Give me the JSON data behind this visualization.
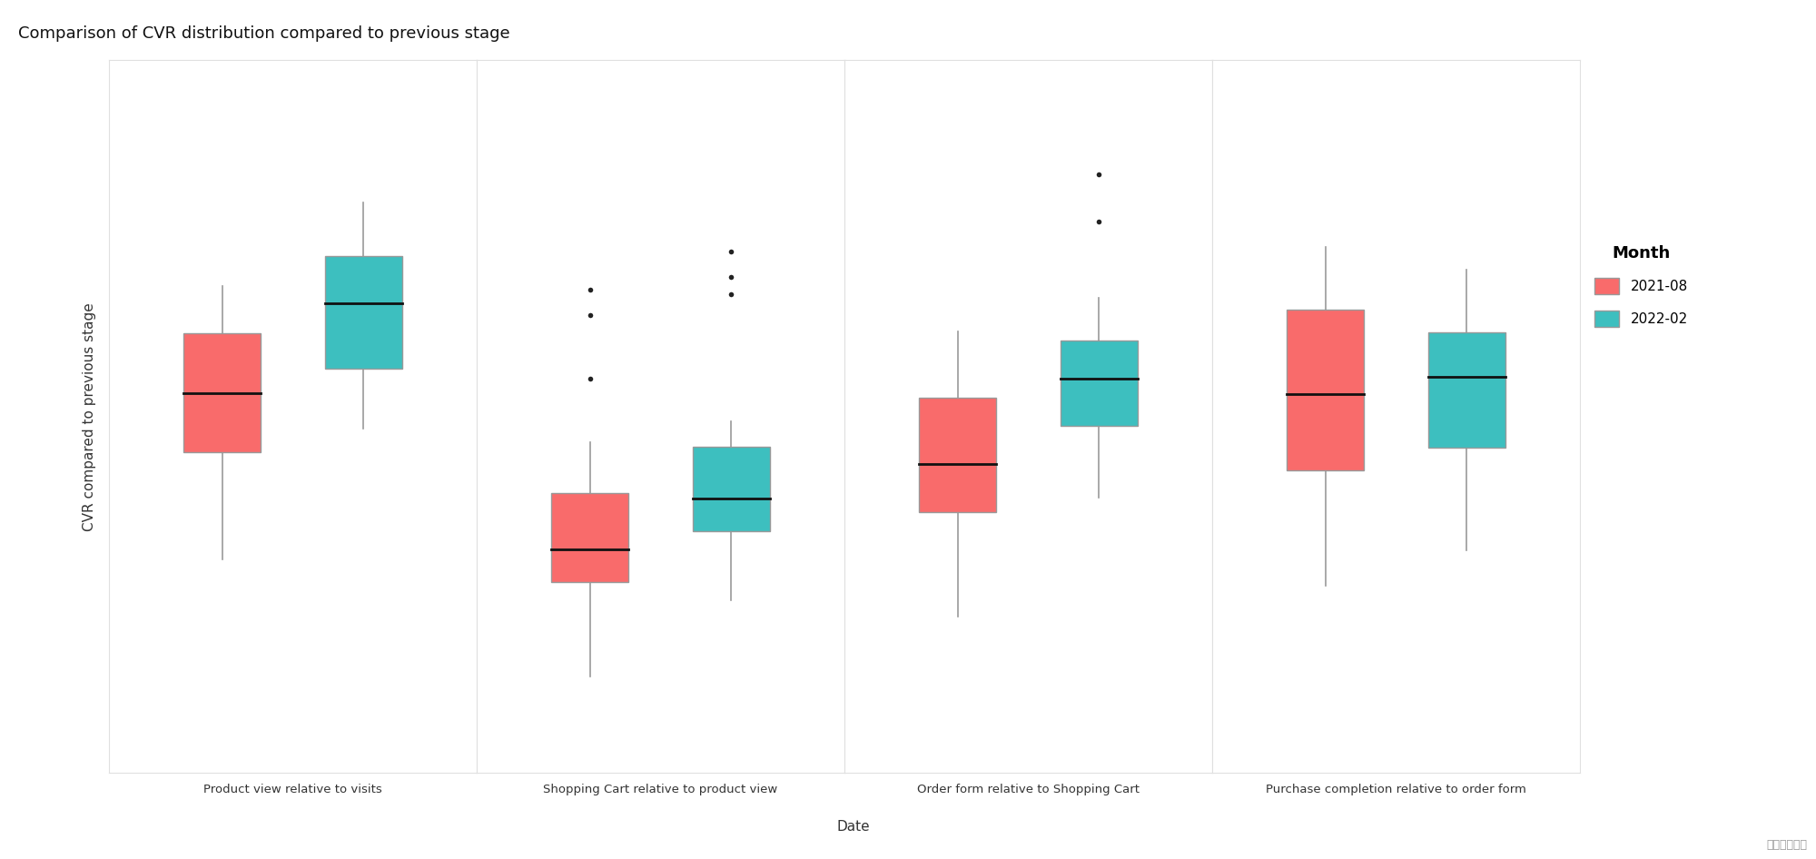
{
  "title": "Comparison of CVR distribution compared to previous stage",
  "xlabel": "Date",
  "ylabel": "CVR compared to previous stage",
  "categories": [
    "Product view relative to visits",
    "Shopping Cart relative to product view",
    "Order form relative to Shopping Cart",
    "Purchase completion relative to order form"
  ],
  "legend_title": "Month",
  "color_2021": "#F96B6B",
  "color_2022": "#3DBFBF",
  "bg_color": "#FFFFFF",
  "grid_color": "#E0E0E0",
  "watermark": "데이타라이즈",
  "boxes": {
    "Product view relative to visits": {
      "2021-08": {
        "q1": 0.62,
        "median": 0.67,
        "q3": 0.72,
        "whisker_low": 0.53,
        "whisker_high": 0.76,
        "fliers": []
      },
      "2022-02": {
        "q1": 0.69,
        "median": 0.745,
        "q3": 0.785,
        "whisker_low": 0.64,
        "whisker_high": 0.83,
        "fliers": []
      }
    },
    "Shopping Cart relative to product view": {
      "2021-08": {
        "q1": 0.055,
        "median": 0.068,
        "q3": 0.09,
        "whisker_low": 0.018,
        "whisker_high": 0.11,
        "fliers": [
          0.17,
          0.16,
          0.135
        ]
      },
      "2022-02": {
        "q1": 0.075,
        "median": 0.088,
        "q3": 0.108,
        "whisker_low": 0.048,
        "whisker_high": 0.118,
        "fliers": [
          0.185,
          0.175,
          0.168
        ]
      }
    },
    "Order form relative to Shopping Cart": {
      "2021-08": {
        "q1": 0.375,
        "median": 0.425,
        "q3": 0.495,
        "whisker_low": 0.265,
        "whisker_high": 0.565,
        "fliers": []
      },
      "2022-02": {
        "q1": 0.465,
        "median": 0.515,
        "q3": 0.555,
        "whisker_low": 0.39,
        "whisker_high": 0.6,
        "fliers": [
          0.73,
          0.68
        ]
      }
    },
    "Purchase completion relative to order form": {
      "2021-08": {
        "q1": 0.59,
        "median": 0.675,
        "q3": 0.77,
        "whisker_low": 0.46,
        "whisker_high": 0.84,
        "fliers": []
      },
      "2022-02": {
        "q1": 0.615,
        "median": 0.695,
        "q3": 0.745,
        "whisker_low": 0.5,
        "whisker_high": 0.815,
        "fliers": []
      }
    }
  },
  "ylims": {
    "Product view relative to visits": [
      0.35,
      0.95
    ],
    "Shopping Cart relative to product view": [
      -0.02,
      0.26
    ],
    "Order form relative to Shopping Cart": [
      0.1,
      0.85
    ],
    "Purchase completion relative to order form": [
      0.25,
      1.05
    ]
  }
}
